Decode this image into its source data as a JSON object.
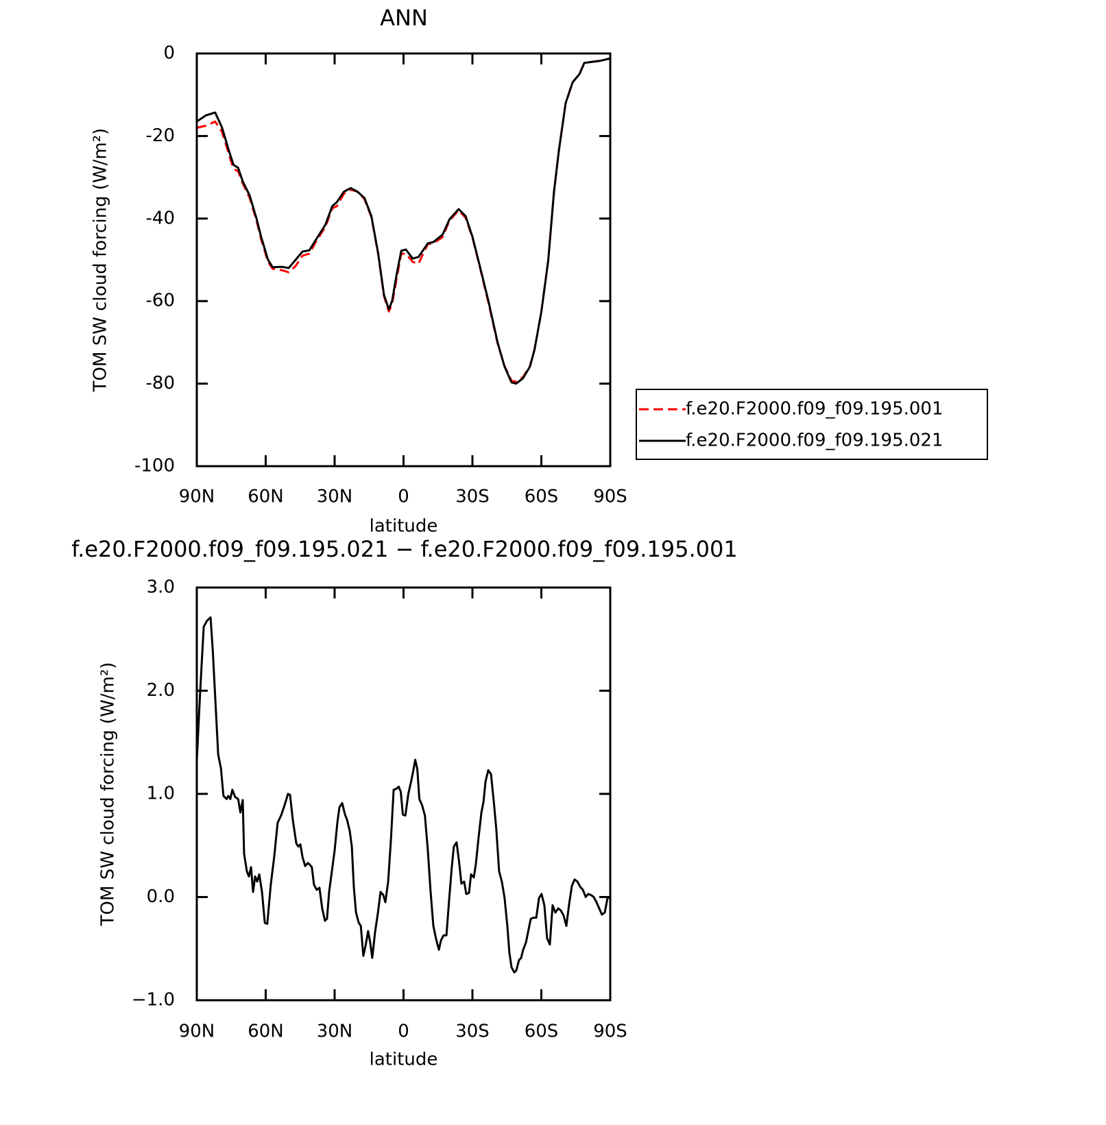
{
  "chart_data": [
    {
      "type": "line",
      "title": "ANN",
      "xlabel": "latitude",
      "ylabel": "TOM SW cloud forcing (W/m²)",
      "x": [
        90,
        86,
        82,
        79,
        76,
        74,
        72,
        70,
        67,
        64,
        62,
        59,
        57,
        53,
        50,
        47,
        44,
        41,
        38,
        34,
        31,
        29,
        26,
        23,
        20,
        17,
        14,
        11,
        8.5,
        6.4,
        5,
        3,
        1,
        -1,
        -4,
        -6.5,
        -8.5,
        -10.6,
        -13,
        -17,
        -20,
        -24,
        -27,
        -30,
        -33,
        -37,
        -41,
        -44,
        -47,
        -49,
        -52,
        -55,
        -57,
        -60,
        -63,
        -65.5,
        -67.6,
        -70.6,
        -73.6,
        -76.6,
        -78.7,
        -82.5,
        -85.5,
        -90
      ],
      "series": [
        {
          "name": "f.e20.F2000.f09_f09.195.001",
          "color": "#ff0000",
          "linestyle": "dashed",
          "values": [
            -18,
            -17.5,
            -16.5,
            -19,
            -24.5,
            -28,
            -28.5,
            -31.5,
            -35,
            -40.5,
            -45,
            -50.5,
            -52.2,
            -52.5,
            -53,
            -51.5,
            -49,
            -48.5,
            -45.5,
            -42,
            -37.5,
            -37,
            -34,
            -33,
            -33.5,
            -35.3,
            -39.6,
            -48.7,
            -58.8,
            -62.5,
            -60.8,
            -54.5,
            -48.5,
            -48.5,
            -50.5,
            -51,
            -48.5,
            -46.2,
            -46,
            -44.5,
            -40.5,
            -38,
            -39.8,
            -44.6,
            -51.2,
            -60.5,
            -70.3,
            -75.8,
            -79.3,
            -79.5,
            -78.4,
            -75.8,
            -71.8,
            -62.6,
            -50.2,
            -33.6,
            -23.6,
            -12,
            -7,
            -5,
            -2.3,
            -2,
            -1.8,
            -1.2
          ]
        },
        {
          "name": "f.e20.F2000.f09_f09.195.021",
          "color": "#000000",
          "linestyle": "solid",
          "values": [
            -16.5,
            -15,
            -14.3,
            -18,
            -23.6,
            -27,
            -27.7,
            -31,
            -34.4,
            -40,
            -44.4,
            -50,
            -51.8,
            -51.7,
            -52,
            -50,
            -48,
            -47.7,
            -45,
            -41.5,
            -37,
            -36,
            -33.5,
            -32.6,
            -33.5,
            -35,
            -39.4,
            -48.5,
            -58.5,
            -62,
            -60,
            -53.5,
            -47.8,
            -47.5,
            -49.7,
            -49.3,
            -47.7,
            -46,
            -45.7,
            -43.9,
            -40.2,
            -37.7,
            -39.4,
            -44.4,
            -51,
            -60.1,
            -70.1,
            -75.9,
            -79.7,
            -80,
            -78.7,
            -75.9,
            -71.8,
            -62.6,
            -50.2,
            -33.6,
            -23.6,
            -12,
            -7,
            -5,
            -2.3,
            -2,
            -1.8,
            -1.2
          ]
        }
      ],
      "xlim": [
        90,
        -90
      ],
      "xticks": [
        {
          "value": 90,
          "label": "90N"
        },
        {
          "value": 60,
          "label": "60N"
        },
        {
          "value": 30,
          "label": "30N"
        },
        0,
        {
          "value": -30,
          "label": "30S"
        },
        {
          "value": -60,
          "label": "60S"
        },
        {
          "value": -90,
          "label": "90S"
        }
      ],
      "ylim": [
        -100,
        0
      ],
      "yticks": [
        0,
        -20,
        -40,
        -60,
        -80,
        -100
      ],
      "legend": "right"
    },
    {
      "type": "line",
      "title": "f.e20.F2000.f09_f09.195.021 − f.e20.F2000.f09_f09.195.001",
      "xlabel": "latitude",
      "ylabel": "TOM SW cloud forcing (W/m²)",
      "x": [
        90,
        88.5,
        87,
        85.5,
        84,
        83,
        80.7,
        79.5,
        78.4,
        77,
        76.3,
        75.4,
        74.5,
        73.3,
        72,
        71,
        70,
        69.4,
        68.2,
        67.3,
        66.4,
        65.5,
        64.6,
        63.7,
        62.8,
        61.6,
        60.4,
        59.3,
        57.8,
        56.3,
        54.8,
        53.3,
        51.8,
        50.3,
        49.4,
        48.2,
        46.7,
        45.8,
        44.9,
        44,
        42.8,
        41.6,
        40.7,
        39.9,
        39,
        37.8,
        36.6,
        35.4,
        34.2,
        33.3,
        32.4,
        31.2,
        30,
        28.8,
        27.9,
        26.7,
        25.5,
        24.6,
        23.4,
        22.5,
        21.6,
        20.7,
        19.5,
        18.6,
        17.5,
        16.6,
        15.4,
        14.5,
        13.6,
        12.4,
        11.2,
        10,
        8.8,
        7.9,
        6.7,
        5.5,
        4.3,
        3.1,
        2.1,
        1.2,
        0.3,
        -0.8,
        -2.1,
        -3.3,
        -4.2,
        -5.1,
        -6,
        -6.9,
        -8.1,
        -9.3,
        -10.6,
        -11.8,
        -13,
        -14.2,
        -15.4,
        -16.3,
        -17.5,
        -18.7,
        -19.9,
        -21,
        -21.9,
        -23.1,
        -24.3,
        -25.2,
        -26.4,
        -27.3,
        -28.5,
        -29.4,
        -30.6,
        -31.5,
        -32.7,
        -33.9,
        -34.8,
        -35.7,
        -36.9,
        -38.1,
        -39.3,
        -40.4,
        -41.6,
        -42.8,
        -44,
        -45.2,
        -46.1,
        -47,
        -48.2,
        -49.1,
        -50.3,
        -51.2,
        -52.1,
        -53.3,
        -54.2,
        -55.4,
        -56.6,
        -57.8,
        -59,
        -60.1,
        -61.3,
        -62.5,
        -63.7,
        -64.9,
        -66.1,
        -67.3,
        -68.5,
        -69.7,
        -70.9,
        -72.1,
        -73.3,
        -74.5,
        -75.7,
        -76.9,
        -78.1,
        -79.3,
        -80.4,
        -81.6,
        -82.8,
        -84,
        -85.2,
        -86.4,
        -87.6,
        -88.8,
        -90
      ],
      "series": [
        {
          "color": "#000000",
          "linestyle": "solid",
          "values": [
            1.32,
            2.0,
            2.62,
            2.68,
            2.71,
            2.38,
            1.38,
            1.25,
            0.98,
            0.95,
            0.98,
            0.95,
            1.04,
            0.97,
            0.95,
            0.82,
            0.94,
            0.42,
            0.25,
            0.2,
            0.29,
            0.05,
            0.2,
            0.15,
            0.22,
            0.05,
            -0.25,
            -0.26,
            0.12,
            0.39,
            0.72,
            0.79,
            0.89,
            1.0,
            0.99,
            0.75,
            0.52,
            0.49,
            0.51,
            0.39,
            0.3,
            0.33,
            0.31,
            0.29,
            0.12,
            0.07,
            0.09,
            -0.11,
            -0.23,
            -0.21,
            0.05,
            0.25,
            0.45,
            0.72,
            0.87,
            0.91,
            0.8,
            0.75,
            0.64,
            0.49,
            0.09,
            -0.15,
            -0.25,
            -0.28,
            -0.57,
            -0.48,
            -0.33,
            -0.44,
            -0.59,
            -0.34,
            -0.16,
            0.05,
            0.02,
            -0.05,
            0.15,
            0.55,
            1.04,
            1.05,
            1.07,
            1.02,
            0.8,
            0.79,
            1.0,
            1.12,
            1.22,
            1.33,
            1.24,
            0.95,
            0.89,
            0.79,
            0.45,
            0.05,
            -0.28,
            -0.41,
            -0.51,
            -0.42,
            -0.37,
            -0.37,
            -0.01,
            0.29,
            0.49,
            0.53,
            0.32,
            0.13,
            0.15,
            0.03,
            0.04,
            0.22,
            0.19,
            0.32,
            0.58,
            0.82,
            0.92,
            1.12,
            1.23,
            1.19,
            0.92,
            0.66,
            0.25,
            0.15,
            -0.01,
            -0.28,
            -0.54,
            -0.68,
            -0.73,
            -0.71,
            -0.61,
            -0.59,
            -0.51,
            -0.44,
            -0.34,
            -0.21,
            -0.2,
            -0.2,
            -0.01,
            0.03,
            -0.08,
            -0.4,
            -0.46,
            -0.08,
            -0.15,
            -0.11,
            -0.13,
            -0.18,
            -0.28,
            -0.07,
            0.11,
            0.17,
            0.15,
            0.1,
            0.07,
            0.0,
            0.03,
            0.02,
            0.0,
            -0.05,
            -0.11,
            -0.17,
            -0.15,
            -0.01,
            0.0
          ]
        }
      ],
      "xlim": [
        90,
        -90
      ],
      "xticks": [
        {
          "value": 90,
          "label": "90N"
        },
        {
          "value": 60,
          "label": "60N"
        },
        {
          "value": 30,
          "label": "30N"
        },
        0,
        {
          "value": -30,
          "label": "30S"
        },
        {
          "value": -60,
          "label": "60S"
        },
        {
          "value": -90,
          "label": "90S"
        }
      ],
      "ylim": [
        -1,
        3
      ],
      "yticks": [
        {
          "value": 3,
          "label": "3.0"
        },
        {
          "value": 2,
          "label": "2.0"
        },
        {
          "value": 1,
          "label": "1.0"
        },
        {
          "value": 0,
          "label": "0.0"
        },
        {
          "value": -1,
          "label": "−1.0"
        }
      ]
    }
  ]
}
